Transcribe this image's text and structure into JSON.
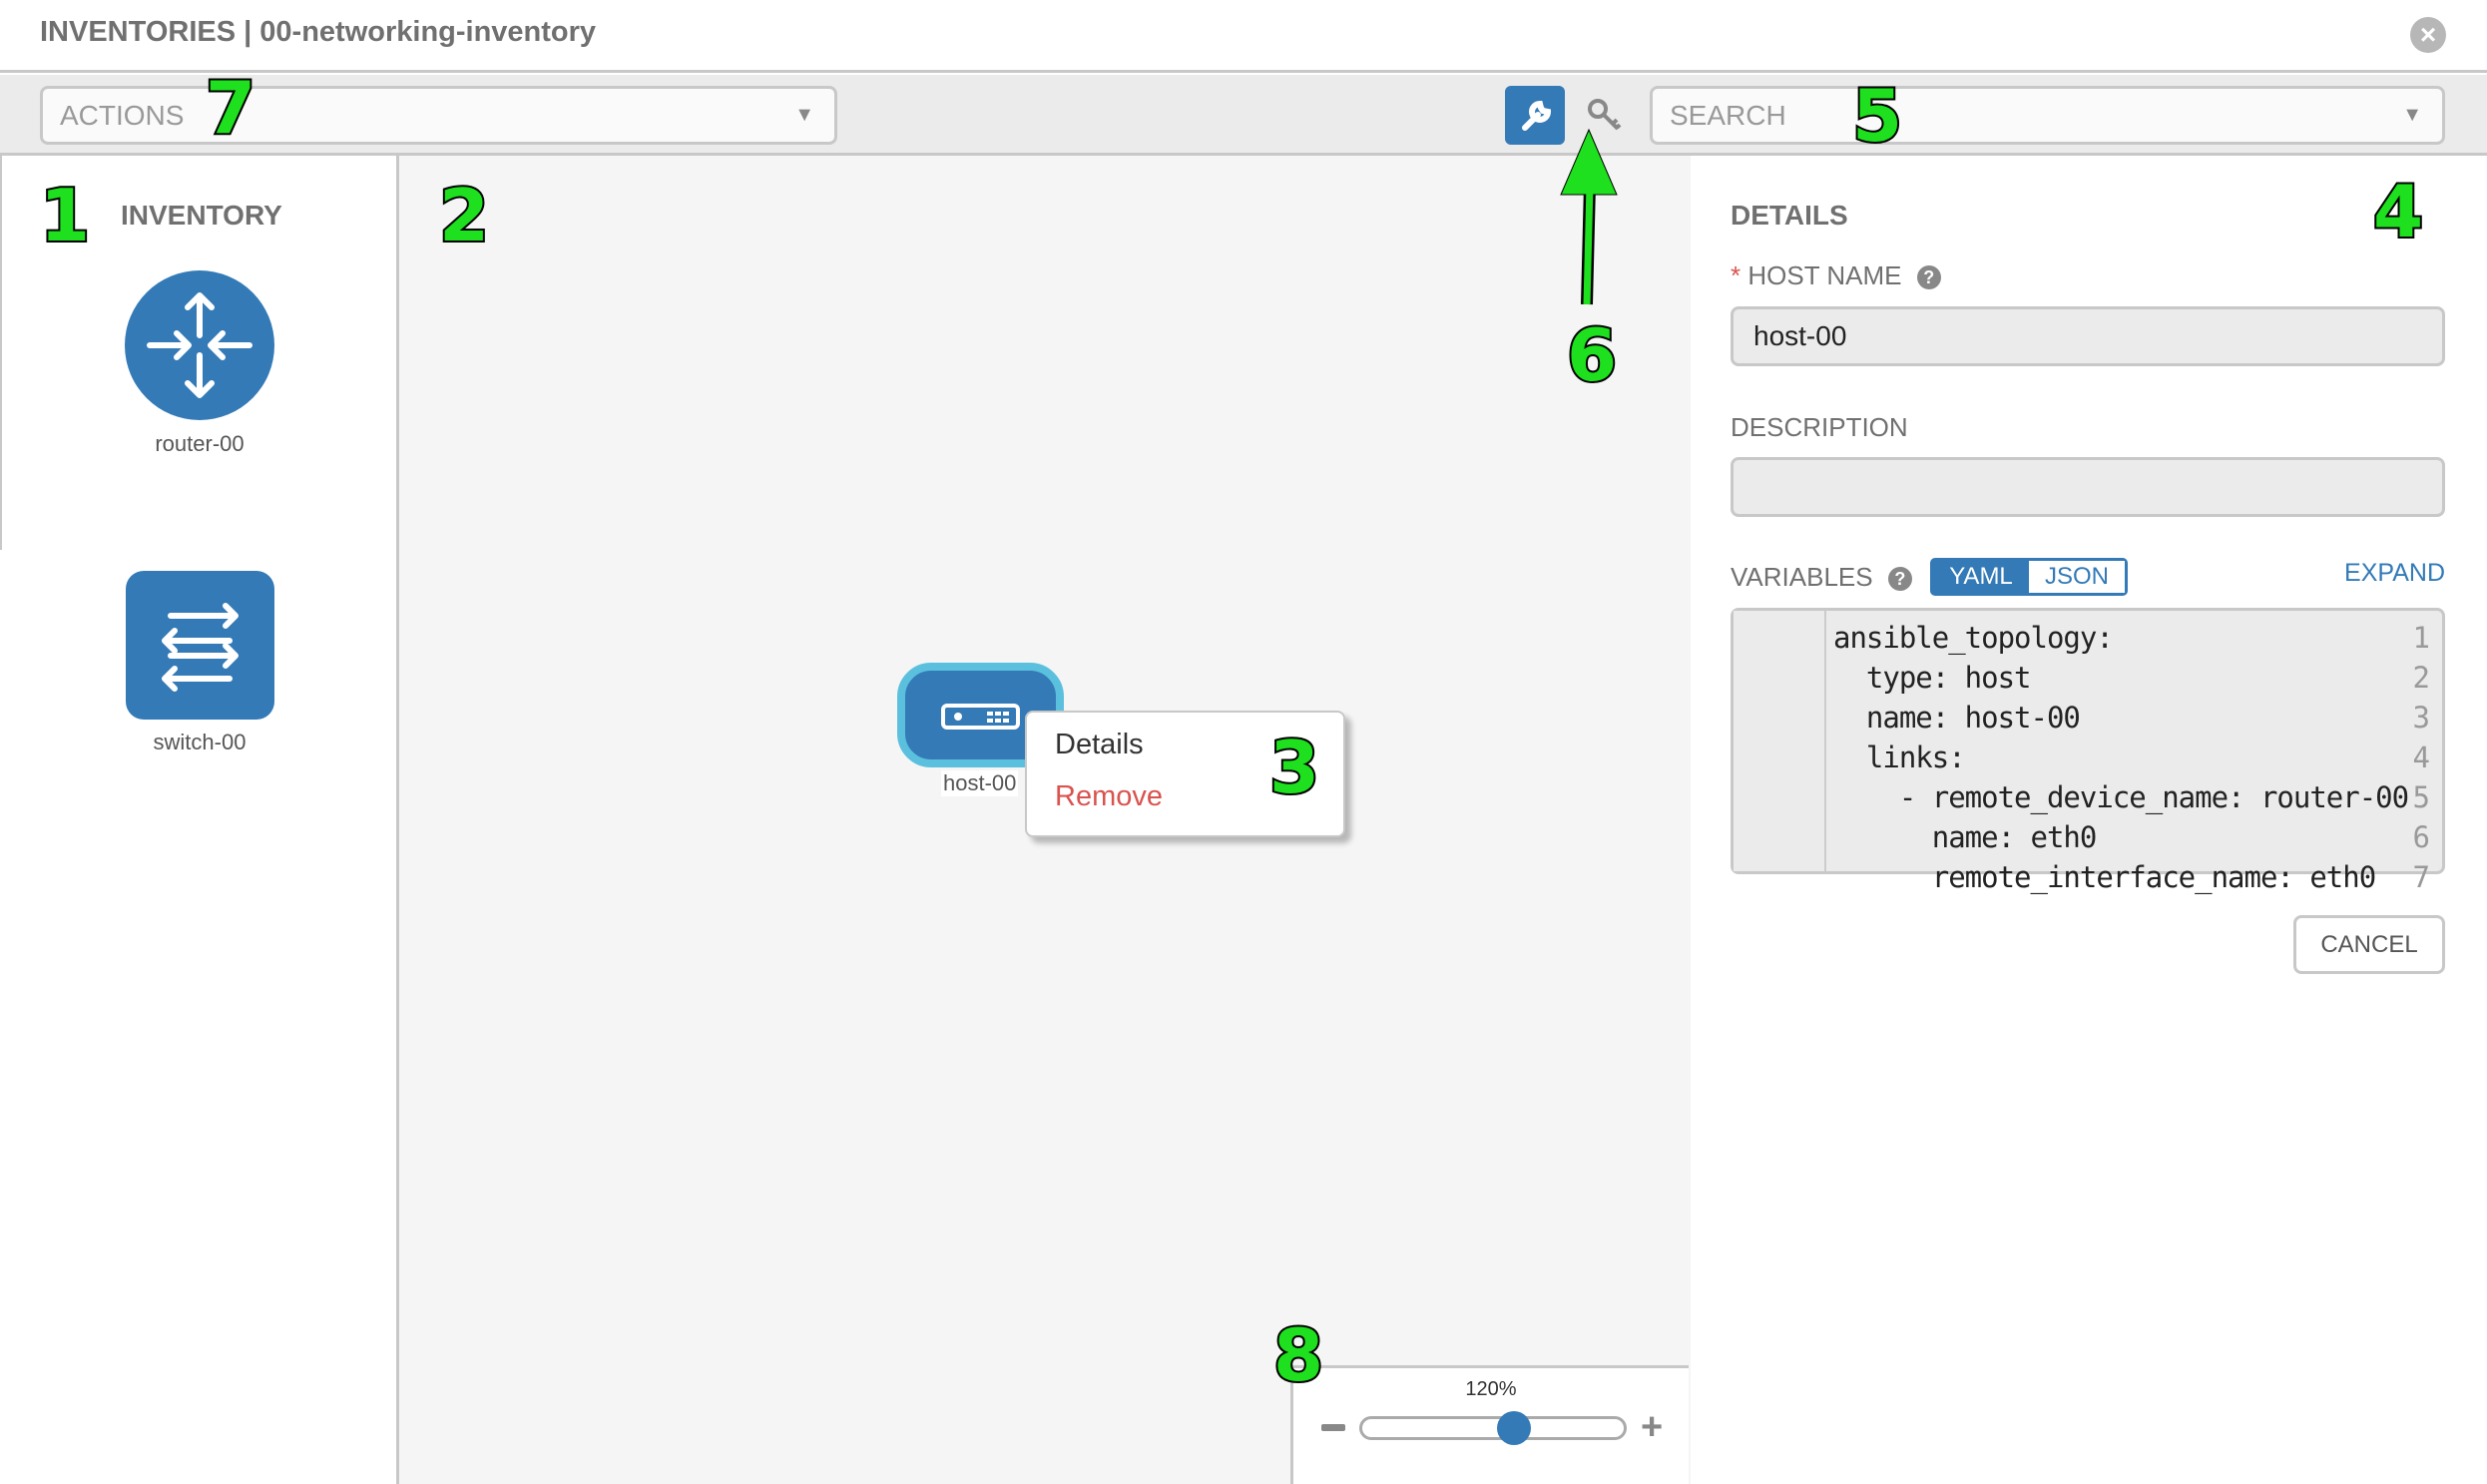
{
  "header": {
    "title": "INVENTORIES | 00-networking-inventory",
    "close_icon": "close-circle-icon"
  },
  "toolbar": {
    "actions_placeholder": "ACTIONS",
    "search_placeholder": "SEARCH",
    "wrench_icon": "wrench-icon",
    "key_icon": "key-icon"
  },
  "sidebar": {
    "title": "INVENTORY",
    "items": [
      {
        "label": "router-00",
        "icon": "router-icon"
      },
      {
        "label": "switch-00",
        "icon": "switch-icon"
      }
    ]
  },
  "canvas": {
    "node": {
      "label": "host-00",
      "icon": "host-icon"
    },
    "context_menu": {
      "details": "Details",
      "remove": "Remove"
    }
  },
  "details": {
    "title": "DETAILS",
    "required_mark": "*",
    "host_name_label": "HOST NAME",
    "host_name_value": "host-00",
    "description_label": "DESCRIPTION",
    "description_value": "",
    "variables_label": "VARIABLES",
    "yaml": "YAML",
    "json": "JSON",
    "active_format": "YAML",
    "expand": "EXPAND",
    "code_lines": [
      {
        "n": "1",
        "text": "ansible_topology:"
      },
      {
        "n": "2",
        "text": "  type: host"
      },
      {
        "n": "3",
        "text": "  name: host-00"
      },
      {
        "n": "4",
        "text": "  links:"
      },
      {
        "n": "5",
        "text": "    - remote_device_name: router-00"
      },
      {
        "n": "6",
        "text": "      name: eth0"
      },
      {
        "n": "7",
        "text": "      remote_interface_name: eth0"
      }
    ],
    "cancel": "CANCEL"
  },
  "zoom": {
    "value": "120%",
    "minus": "−",
    "plus": "+",
    "slider_fraction": 0.58
  },
  "annotations": [
    "1",
    "2",
    "3",
    "4",
    "5",
    "6",
    "7",
    "8"
  ],
  "colors": {
    "accent": "#337ab7",
    "danger": "#d9534f",
    "node_border": "#5bc0de",
    "annotation": "#1ee01e"
  }
}
